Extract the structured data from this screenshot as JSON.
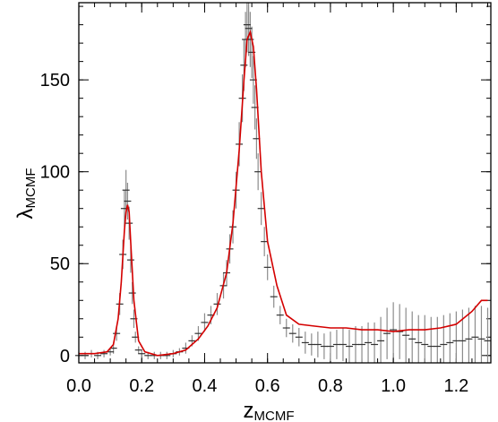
{
  "chart_data": {
    "type": "line",
    "xlabel": "z",
    "xlabel_sub": "MCMF",
    "ylabel": "λ",
    "ylabel_sub": "MCMF",
    "xlim": [
      0.0,
      1.31
    ],
    "ylim": [
      -4,
      192
    ],
    "x_ticks": [
      0.0,
      0.2,
      0.4,
      0.6,
      0.8,
      1.0,
      1.2
    ],
    "x_tick_labels": [
      "0.0",
      "0.2",
      "0.4",
      "0.6",
      "0.8",
      "1.0",
      "1.2"
    ],
    "x_minor_step": 0.05,
    "y_ticks": [
      0,
      50,
      100,
      150
    ],
    "y_tick_labels": [
      "0",
      "50",
      "100",
      "150"
    ],
    "y_minor_step": 10,
    "grid": false,
    "colors": {
      "model": "#d40000",
      "data": "#333333",
      "errorbar": "#8c8c8c",
      "axes": "#000000"
    },
    "series": [
      {
        "kind": "model_curve",
        "x": [
          0.0,
          0.05,
          0.09,
          0.11,
          0.125,
          0.135,
          0.145,
          0.15,
          0.155,
          0.16,
          0.165,
          0.175,
          0.19,
          0.21,
          0.25,
          0.3,
          0.34,
          0.38,
          0.41,
          0.44,
          0.47,
          0.49,
          0.51,
          0.525,
          0.535,
          0.545,
          0.555,
          0.565,
          0.58,
          0.6,
          0.63,
          0.66,
          0.7,
          0.75,
          0.8,
          0.85,
          0.9,
          0.95,
          1.0,
          1.05,
          1.1,
          1.15,
          1.2,
          1.25,
          1.28,
          1.3
        ],
        "y": [
          1,
          1,
          2,
          6,
          20,
          40,
          68,
          78,
          82,
          78,
          62,
          30,
          8,
          2,
          0,
          1,
          3,
          9,
          16,
          26,
          45,
          72,
          112,
          150,
          172,
          176,
          168,
          145,
          100,
          62,
          38,
          22,
          17,
          16,
          15,
          15,
          14,
          14,
          13,
          14,
          14,
          15,
          17,
          24,
          30,
          30
        ]
      },
      {
        "kind": "data_points",
        "x": [
          0.0,
          0.02,
          0.04,
          0.06,
          0.08,
          0.1,
          0.11,
          0.12,
          0.13,
          0.14,
          0.145,
          0.15,
          0.155,
          0.16,
          0.165,
          0.17,
          0.175,
          0.18,
          0.19,
          0.2,
          0.22,
          0.24,
          0.26,
          0.28,
          0.3,
          0.32,
          0.34,
          0.36,
          0.38,
          0.4,
          0.42,
          0.44,
          0.46,
          0.47,
          0.48,
          0.49,
          0.5,
          0.51,
          0.52,
          0.525,
          0.53,
          0.535,
          0.54,
          0.545,
          0.55,
          0.555,
          0.56,
          0.565,
          0.57,
          0.58,
          0.59,
          0.6,
          0.62,
          0.64,
          0.66,
          0.68,
          0.7,
          0.72,
          0.74,
          0.76,
          0.78,
          0.8,
          0.82,
          0.84,
          0.86,
          0.88,
          0.9,
          0.92,
          0.94,
          0.96,
          0.98,
          1.0,
          1.02,
          1.04,
          1.06,
          1.08,
          1.1,
          1.12,
          1.14,
          1.16,
          1.18,
          1.2,
          1.22,
          1.24,
          1.26,
          1.28,
          1.3
        ],
        "y": [
          0,
          0,
          1,
          0,
          1,
          2,
          4,
          12,
          28,
          55,
          80,
          90,
          84,
          72,
          52,
          34,
          20,
          10,
          3,
          1,
          0,
          0,
          0,
          0,
          1,
          2,
          4,
          8,
          12,
          18,
          22,
          28,
          38,
          45,
          58,
          70,
          90,
          115,
          140,
          158,
          172,
          180,
          178,
          172,
          165,
          150,
          135,
          118,
          100,
          80,
          62,
          48,
          32,
          22,
          15,
          12,
          10,
          7,
          6,
          6,
          5,
          5,
          6,
          6,
          5,
          6,
          6,
          7,
          6,
          8,
          12,
          14,
          13,
          11,
          9,
          7,
          6,
          5,
          5,
          6,
          7,
          8,
          8,
          9,
          10,
          9,
          8
        ],
        "err": [
          2,
          2,
          2,
          2,
          2,
          2,
          3,
          4,
          6,
          8,
          10,
          11,
          10,
          9,
          7,
          6,
          5,
          3,
          2,
          2,
          2,
          2,
          2,
          2,
          2,
          2,
          3,
          3,
          4,
          5,
          5,
          6,
          7,
          7,
          8,
          9,
          10,
          12,
          13,
          14,
          15,
          15,
          15,
          15,
          14,
          13,
          12,
          11,
          10,
          9,
          8,
          7,
          6,
          5,
          5,
          5,
          5,
          6,
          6,
          7,
          7,
          8,
          8,
          9,
          9,
          10,
          10,
          11,
          12,
          13,
          14,
          15,
          15,
          15,
          15,
          15,
          16,
          16,
          16,
          16,
          16,
          16,
          17,
          17,
          17,
          18,
          18
        ]
      }
    ]
  }
}
